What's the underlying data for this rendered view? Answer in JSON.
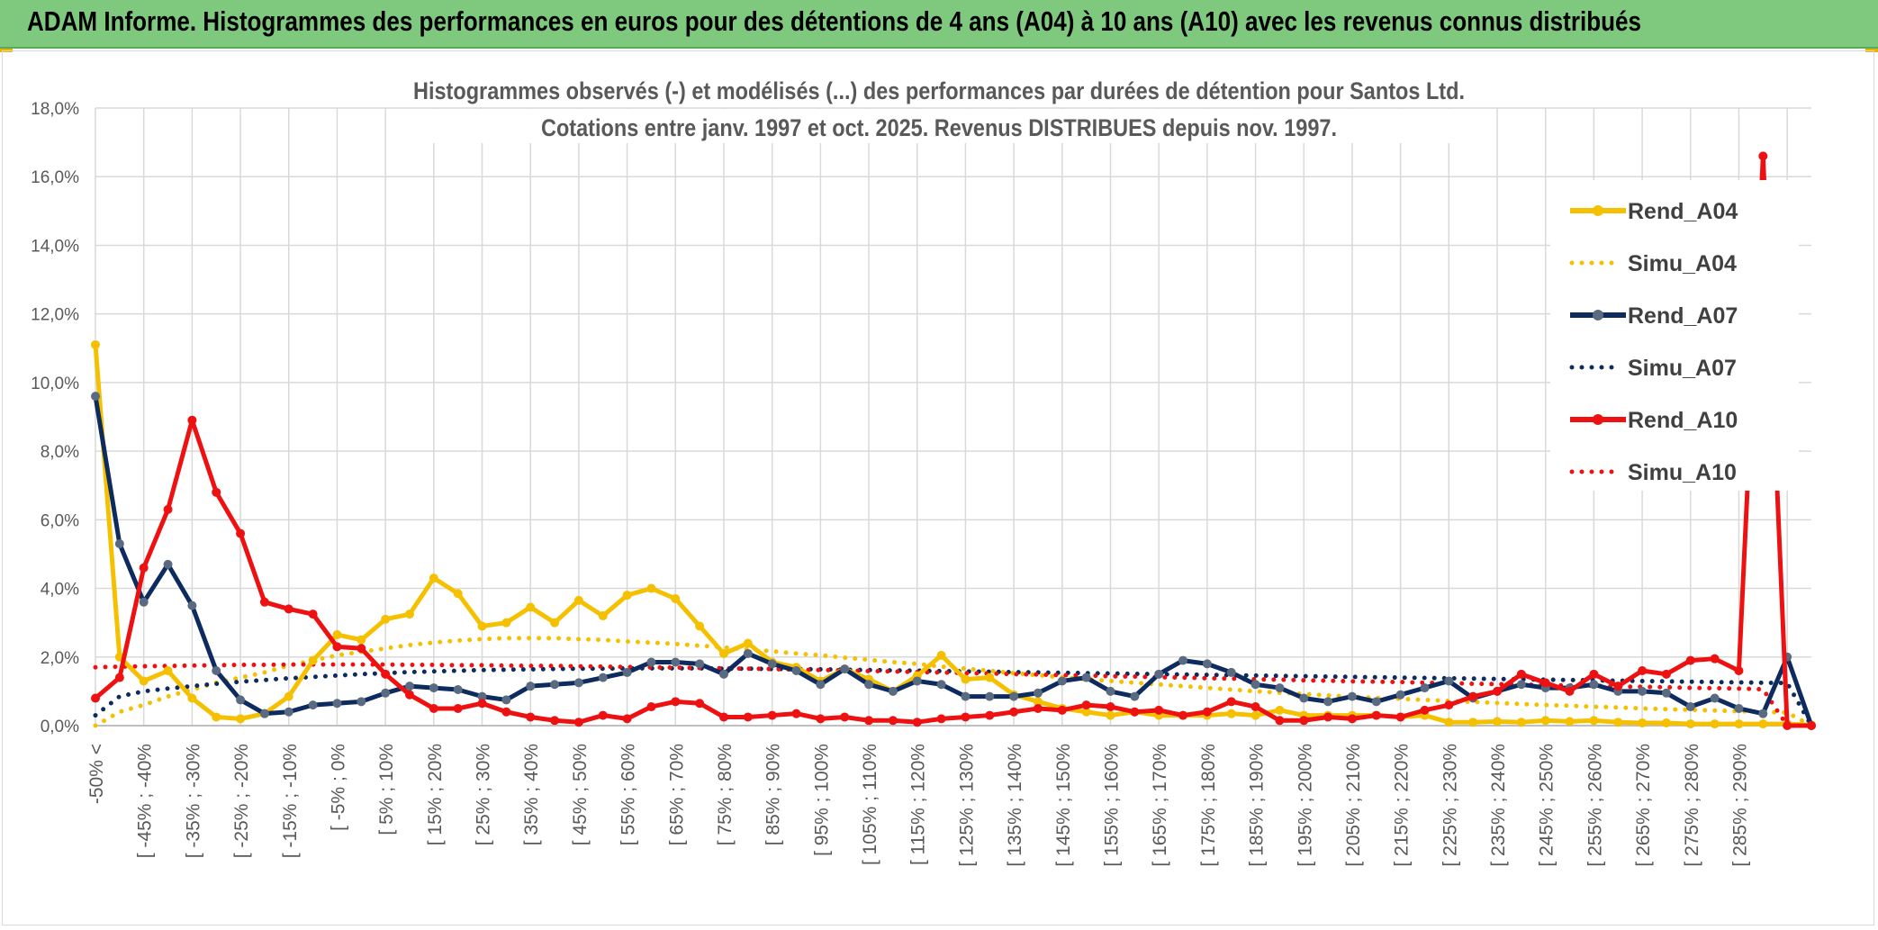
{
  "page": {
    "banner_title": "ADAM Informe. Histogrammes des performances en euros pour des détentions de 4 ans (A04) à 10 ans (A10) avec les revenus connus distribués"
  },
  "colors": {
    "banner": "#7fc97f",
    "a04": "#f5c000",
    "a07": "#0d2b5e",
    "a07_marker": "#5a6a80",
    "a10": "#ee1111",
    "grid": "#d9d9d9",
    "text": "#595959"
  },
  "chart_data": {
    "type": "line",
    "title": [
      "Histogrammes observés (-) et modélisés (...) des performances par durées de détention pour Santos Ltd.",
      "Cotations entre janv. 1997 et oct. 2025. Revenus DISTRIBUES depuis nov. 1997."
    ],
    "xlabel": "",
    "ylabel": "",
    "ylim": [
      0,
      18
    ],
    "yticks": [
      "0,0%",
      "2,0%",
      "4,0%",
      "6,0%",
      "8,0%",
      "10,0%",
      "12,0%",
      "14,0%",
      "16,0%",
      "18,0%"
    ],
    "legend_position": "right",
    "categories": [
      "-50% <",
      "[ -50% ; -45%",
      "[ -45% ; -40%",
      "[ -40% ; -35%",
      "[ -35% ; -30%",
      "[ -30% ; -25%",
      "[ -25% ; -20%",
      "[ -20% ; -15%",
      "[ -15% ; -10%",
      "[ -10% ; -5%",
      "[ -5% ; 0%",
      "[ 0% ; 5%",
      "[ 5% ; 10%",
      "[ 10% ; 15%",
      "[ 15% ; 20%",
      "[ 20% ; 25%",
      "[ 25% ; 30%",
      "[ 30% ; 35%",
      "[ 35% ; 40%",
      "[ 40% ; 45%",
      "[ 45% ; 50%",
      "[ 50% ; 55%",
      "[ 55% ; 60%",
      "[ 60% ; 65%",
      "[ 65% ; 70%",
      "[ 70% ; 75%",
      "[ 75% ; 80%",
      "[ 80% ; 85%",
      "[ 85% ; 90%",
      "[ 90% ; 95%",
      "[ 95% ; 100%",
      "[ 100% ; 105%",
      "[ 105% ; 110%",
      "[ 110% ; 115%",
      "[ 115% ; 120%",
      "[ 120% ; 125%",
      "[ 125% ; 130%",
      "[ 130% ; 135%",
      "[ 135% ; 140%",
      "[ 140% ; 145%",
      "[ 145% ; 150%",
      "[ 150% ; 155%",
      "[ 155% ; 160%",
      "[ 160% ; 165%",
      "[ 165% ; 170%",
      "[ 170% ; 175%",
      "[ 175% ; 180%",
      "[ 180% ; 185%",
      "[ 185% ; 190%",
      "[ 190% ; 195%",
      "[ 195% ; 200%",
      "[ 200% ; 205%",
      "[ 205% ; 210%",
      "[ 210% ; 215%",
      "[ 215% ; 220%",
      "[ 220% ; 225%",
      "[ 225% ; 230%",
      "[ 230% ; 235%",
      "[ 235% ; 240%",
      "[ 240% ; 245%",
      "[ 245% ; 250%",
      "[ 250% ; 255%",
      "[ 255% ; 260%",
      "[ 260% ; 265%",
      "[ 265% ; 270%",
      "[ 270% ; 275%",
      "[ 275% ; 280%",
      "[ 280% ; 285%",
      "[ 285% ; 290%",
      "[ 290% ; 295%",
      "[ 295% ; 300%",
      "> 300%"
    ],
    "visible_tick_labels": [
      "-50% <",
      "[ -45% ; -40%",
      "[ -35% ; -30%",
      "[ -25% ; -20%",
      "[ -15% ; -10%",
      "[ -5% ; 0%",
      "[ 5% ; 10%",
      "[ 15% ; 20%",
      "[ 25% ; 30%",
      "[ 35% ; 40%",
      "[ 45% ; 50%",
      "[ 55% ; 60%",
      "[ 65% ; 70%",
      "[ 75% ; 80%",
      "[ 85% ; 90%",
      "[ 95% ; 100%",
      "[ 105% ; 110%",
      "[ 115% ; 120%",
      "[ 125% ; 130%",
      "[ 135% ; 140%",
      "[ 145% ; 150%",
      "[ 155% ; 160%",
      "[ 165% ; 170%",
      "[ 175% ; 180%",
      "[ 185% ; 190%",
      "[ 195% ; 200%",
      "[ 205% ; 210%",
      "[ 215% ; 220%",
      "[ 225% ; 230%",
      "[ 235% ; 240%",
      "[ 245% ; 250%",
      "[ 255% ; 260%",
      "[ 265% ; 270%",
      "[ 275% ; 280%",
      "[ 285% ; 290%"
    ],
    "series": [
      {
        "name": "Rend_A04",
        "style": "solid",
        "color": "#f5c000",
        "marker": true,
        "values": [
          11.1,
          2.0,
          1.3,
          1.6,
          0.8,
          0.25,
          0.2,
          0.35,
          0.85,
          1.9,
          2.65,
          2.5,
          3.1,
          3.25,
          4.3,
          3.85,
          2.9,
          3.0,
          3.45,
          3.0,
          3.65,
          3.2,
          3.8,
          4.0,
          3.7,
          2.9,
          2.1,
          2.4,
          1.85,
          1.7,
          1.3,
          1.65,
          1.35,
          1.0,
          1.45,
          2.05,
          1.35,
          1.4,
          0.9,
          0.7,
          0.5,
          0.4,
          0.3,
          0.4,
          0.3,
          0.3,
          0.3,
          0.35,
          0.3,
          0.45,
          0.3,
          0.3,
          0.3,
          0.3,
          0.25,
          0.3,
          0.1,
          0.1,
          0.12,
          0.1,
          0.15,
          0.12,
          0.15,
          0.1,
          0.08,
          0.08,
          0.05,
          0.05,
          0.05,
          0.05,
          0.05,
          0.02
        ]
      },
      {
        "name": "Simu_A04",
        "style": "dotted",
        "color": "#f5c000",
        "marker": false,
        "values": [
          0.0,
          0.4,
          0.6,
          0.85,
          1.05,
          1.25,
          1.4,
          1.55,
          1.75,
          1.9,
          2.05,
          2.15,
          2.25,
          2.35,
          2.42,
          2.48,
          2.52,
          2.55,
          2.55,
          2.55,
          2.52,
          2.5,
          2.45,
          2.42,
          2.38,
          2.33,
          2.28,
          2.22,
          2.17,
          2.1,
          2.05,
          1.98,
          1.92,
          1.85,
          1.8,
          1.72,
          1.66,
          1.6,
          1.53,
          1.47,
          1.41,
          1.35,
          1.3,
          1.25,
          1.2,
          1.15,
          1.1,
          1.05,
          1.0,
          0.96,
          0.92,
          0.88,
          0.84,
          0.81,
          0.78,
          0.75,
          0.72,
          0.69,
          0.66,
          0.63,
          0.6,
          0.58,
          0.55,
          0.53,
          0.5,
          0.48,
          0.46,
          0.44,
          0.42,
          0.4,
          0.38,
          0.0
        ]
      },
      {
        "name": "Rend_A07",
        "style": "solid",
        "color": "#0d2b5e",
        "marker": true,
        "values": [
          9.6,
          5.3,
          3.6,
          4.7,
          3.5,
          1.6,
          0.75,
          0.35,
          0.4,
          0.6,
          0.65,
          0.7,
          0.95,
          1.15,
          1.1,
          1.05,
          0.85,
          0.75,
          1.15,
          1.2,
          1.25,
          1.4,
          1.55,
          1.85,
          1.85,
          1.8,
          1.5,
          2.1,
          1.8,
          1.6,
          1.2,
          1.65,
          1.2,
          1.0,
          1.3,
          1.2,
          0.85,
          0.85,
          0.85,
          0.95,
          1.3,
          1.4,
          1.0,
          0.85,
          1.5,
          1.9,
          1.8,
          1.55,
          1.2,
          1.1,
          0.8,
          0.7,
          0.85,
          0.7,
          0.9,
          1.1,
          1.3,
          0.8,
          1.0,
          1.2,
          1.1,
          1.1,
          1.2,
          1.0,
          1.0,
          0.95,
          0.55,
          0.8,
          0.5,
          0.35,
          2.0,
          0.0
        ]
      },
      {
        "name": "Simu_A07",
        "style": "dotted",
        "color": "#0d2b5e",
        "marker": false,
        "values": [
          0.3,
          0.85,
          1.0,
          1.08,
          1.15,
          1.22,
          1.28,
          1.33,
          1.38,
          1.42,
          1.46,
          1.5,
          1.53,
          1.56,
          1.58,
          1.6,
          1.62,
          1.63,
          1.64,
          1.65,
          1.66,
          1.66,
          1.67,
          1.67,
          1.67,
          1.67,
          1.66,
          1.66,
          1.65,
          1.65,
          1.64,
          1.63,
          1.62,
          1.61,
          1.6,
          1.59,
          1.58,
          1.57,
          1.56,
          1.55,
          1.54,
          1.53,
          1.52,
          1.51,
          1.5,
          1.49,
          1.48,
          1.47,
          1.46,
          1.45,
          1.44,
          1.43,
          1.42,
          1.41,
          1.4,
          1.39,
          1.38,
          1.37,
          1.36,
          1.35,
          1.34,
          1.33,
          1.32,
          1.31,
          1.3,
          1.29,
          1.28,
          1.27,
          1.26,
          1.25,
          1.24,
          0.0
        ]
      },
      {
        "name": "Rend_A10",
        "style": "solid",
        "color": "#ee1111",
        "marker": true,
        "values": [
          0.8,
          1.4,
          4.6,
          6.3,
          8.9,
          6.8,
          5.6,
          3.6,
          3.4,
          3.25,
          2.3,
          2.25,
          1.5,
          0.9,
          0.5,
          0.5,
          0.65,
          0.4,
          0.25,
          0.15,
          0.1,
          0.3,
          0.2,
          0.55,
          0.7,
          0.65,
          0.25,
          0.25,
          0.3,
          0.35,
          0.2,
          0.25,
          0.15,
          0.15,
          0.1,
          0.2,
          0.25,
          0.3,
          0.4,
          0.5,
          0.45,
          0.6,
          0.55,
          0.4,
          0.45,
          0.3,
          0.4,
          0.7,
          0.55,
          0.15,
          0.15,
          0.25,
          0.2,
          0.3,
          0.25,
          0.45,
          0.6,
          0.85,
          1.0,
          1.5,
          1.25,
          1.0,
          1.5,
          1.15,
          1.6,
          1.5,
          1.9,
          1.95,
          1.6,
          16.6,
          0.0,
          0.0
        ]
      },
      {
        "name": "Simu_A10",
        "style": "dotted",
        "color": "#ee1111",
        "marker": false,
        "values": [
          1.7,
          1.72,
          1.73,
          1.74,
          1.75,
          1.76,
          1.77,
          1.77,
          1.78,
          1.78,
          1.78,
          1.78,
          1.78,
          1.77,
          1.77,
          1.76,
          1.76,
          1.75,
          1.74,
          1.74,
          1.73,
          1.72,
          1.71,
          1.7,
          1.69,
          1.68,
          1.67,
          1.66,
          1.65,
          1.63,
          1.62,
          1.61,
          1.59,
          1.58,
          1.56,
          1.55,
          1.53,
          1.52,
          1.5,
          1.49,
          1.47,
          1.46,
          1.44,
          1.43,
          1.41,
          1.4,
          1.38,
          1.37,
          1.35,
          1.34,
          1.32,
          1.31,
          1.29,
          1.28,
          1.27,
          1.25,
          1.24,
          1.22,
          1.21,
          1.2,
          1.18,
          1.17,
          1.16,
          1.14,
          1.13,
          1.12,
          1.1,
          1.09,
          1.08,
          1.06,
          0.0,
          0.0
        ]
      }
    ]
  }
}
